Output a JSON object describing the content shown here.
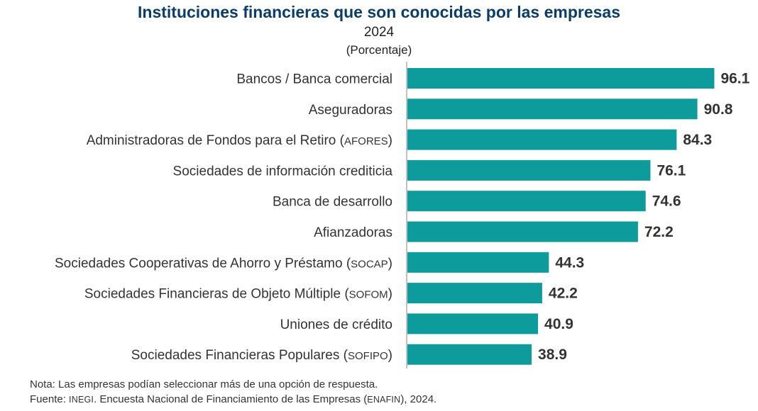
{
  "header": {
    "title": "Instituciones financieras que son conocidas por las empresas",
    "year": "2024",
    "units": "(Porcentaje)"
  },
  "chart_data": {
    "type": "bar",
    "orientation": "horizontal",
    "title": "Instituciones financieras que son conocidas por las empresas",
    "subtitle": "2024",
    "units": "(Porcentaje)",
    "categories": [
      {
        "main": "Bancos / Banca comercial",
        "abbr": ""
      },
      {
        "main": "Aseguradoras",
        "abbr": ""
      },
      {
        "main": "Administradoras de Fondos para el Retiro",
        "abbr": "AFORES"
      },
      {
        "main": "Sociedades de información crediticia",
        "abbr": ""
      },
      {
        "main": "Banca de desarrollo",
        "abbr": ""
      },
      {
        "main": "Afianzadoras",
        "abbr": ""
      },
      {
        "main": "Sociedades Cooperativas de Ahorro y Préstamo",
        "abbr": "SOCAP"
      },
      {
        "main": "Sociedades Financieras de Objeto Múltiple",
        "abbr": "SOFOM"
      },
      {
        "main": "Uniones de crédito",
        "abbr": ""
      },
      {
        "main": "Sociedades Financieras Populares",
        "abbr": "SOFIPO"
      }
    ],
    "values": [
      96.1,
      90.8,
      84.3,
      76.1,
      74.6,
      72.2,
      44.3,
      42.2,
      40.9,
      38.9
    ],
    "xlim": [
      0,
      100
    ],
    "bar_color": "#0d9b9b",
    "grid": false,
    "legend": "none"
  },
  "footer": {
    "note": "Nota: Las empresas podían seleccionar más de una opción de respuesta.",
    "source_prefix": "Fuente: ",
    "source_org": "INEGI",
    "source_mid": ". Encuesta Nacional de Financiamiento de las Empresas (",
    "source_survey": "ENAFIN",
    "source_end": "), 2024."
  }
}
